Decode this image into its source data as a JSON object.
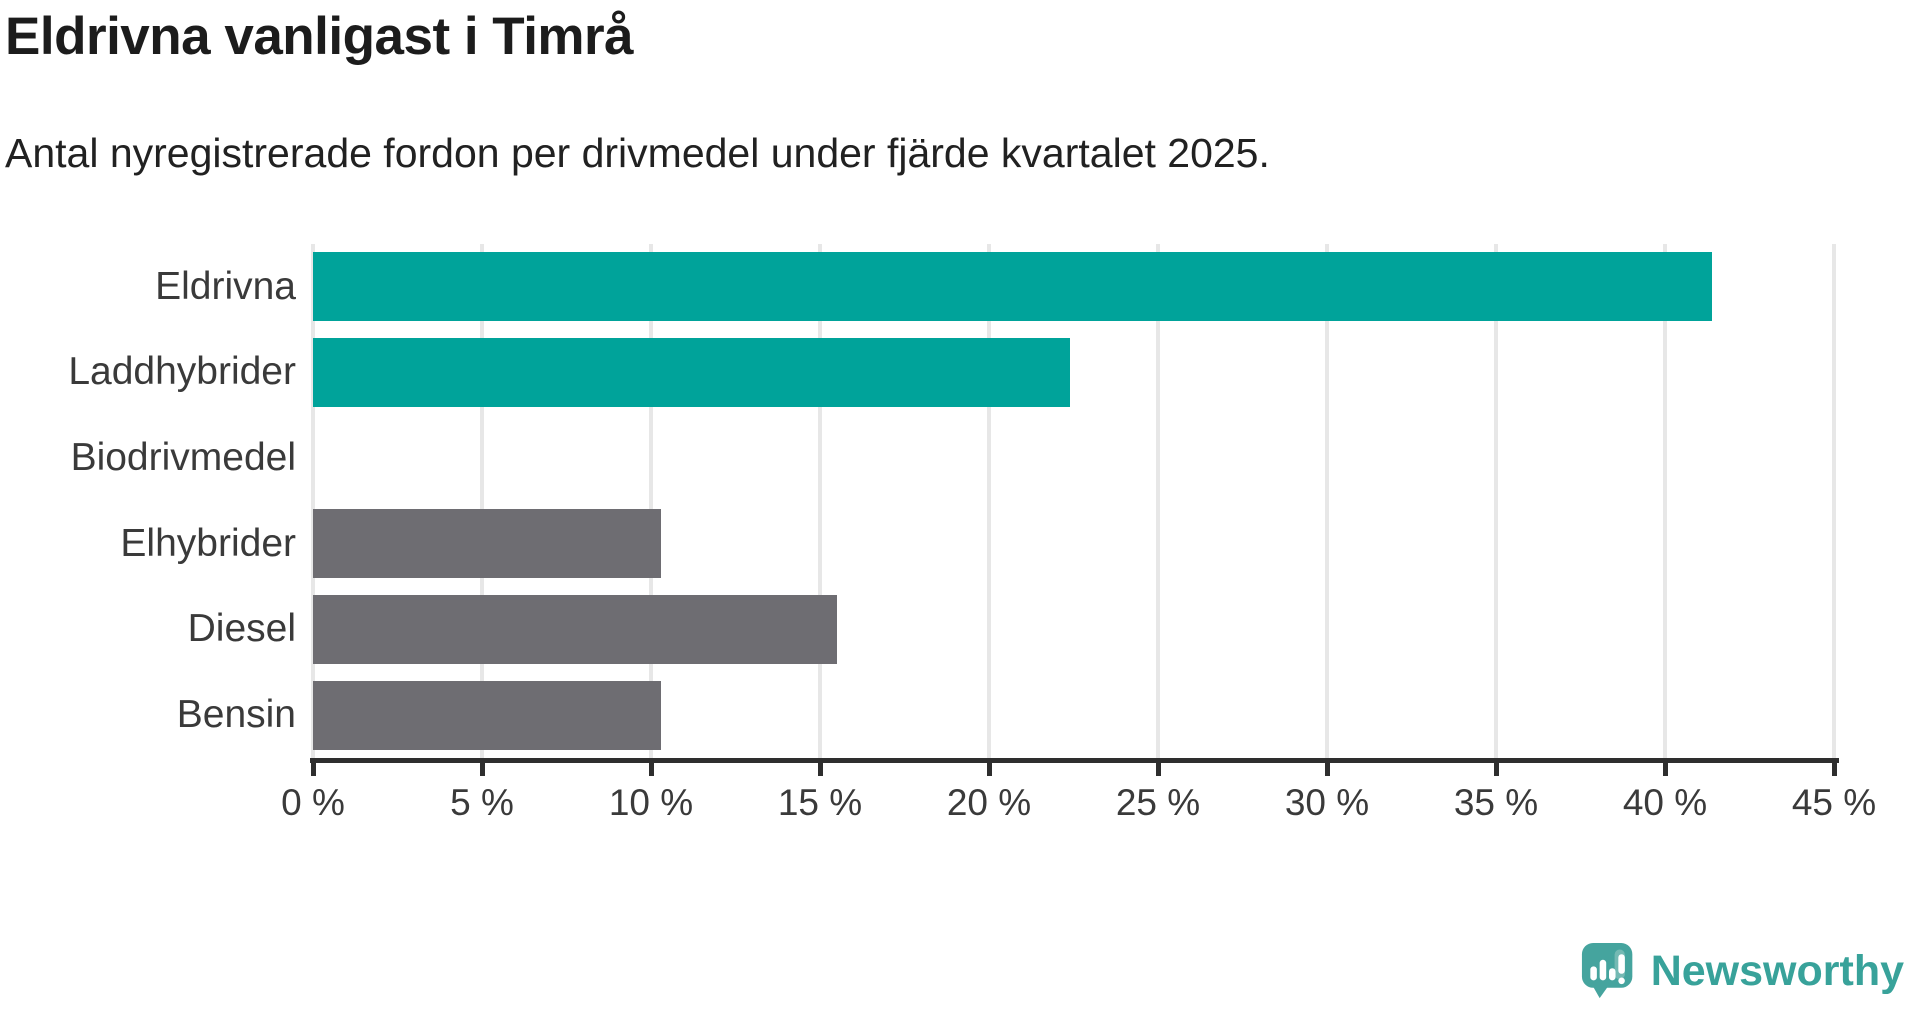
{
  "header": {
    "title": "Eldrivna vanligast i Timrå",
    "subtitle": "Antal nyregistrerade fordon per drivmedel under fjärde kvartalet 2025."
  },
  "colors": {
    "teal": "#00a39a",
    "gray": "#6e6d72",
    "grid": "#e7e7e7",
    "axis": "#2e2e2e",
    "brand_teal": "#45a49e"
  },
  "chart_data": {
    "type": "bar",
    "orientation": "horizontal",
    "title": "Eldrivna vanligast i Timrå",
    "subtitle": "Antal nyregistrerade fordon per drivmedel under fjärde kvartalet 2025.",
    "categories": [
      "Eldrivna",
      "Laddhybrider",
      "Biodrivmedel",
      "Elhybrider",
      "Diesel",
      "Bensin"
    ],
    "values": [
      41.4,
      22.4,
      0,
      10.3,
      15.5,
      10.3
    ],
    "bar_colors": [
      "#00a39a",
      "#00a39a",
      "#00a39a",
      "#6e6d72",
      "#6e6d72",
      "#6e6d72"
    ],
    "xlabel": "",
    "ylabel": "",
    "xlim": [
      0,
      45
    ],
    "xticks": [
      0,
      5,
      10,
      15,
      20,
      25,
      30,
      35,
      40,
      45
    ],
    "xtick_labels": [
      "0 %",
      "5 %",
      "10 %",
      "15 %",
      "20 %",
      "25 %",
      "30 %",
      "35 %",
      "40 %",
      "45 %"
    ],
    "grid": true,
    "legend": false
  },
  "footer": {
    "brand": "Newsworthy"
  }
}
